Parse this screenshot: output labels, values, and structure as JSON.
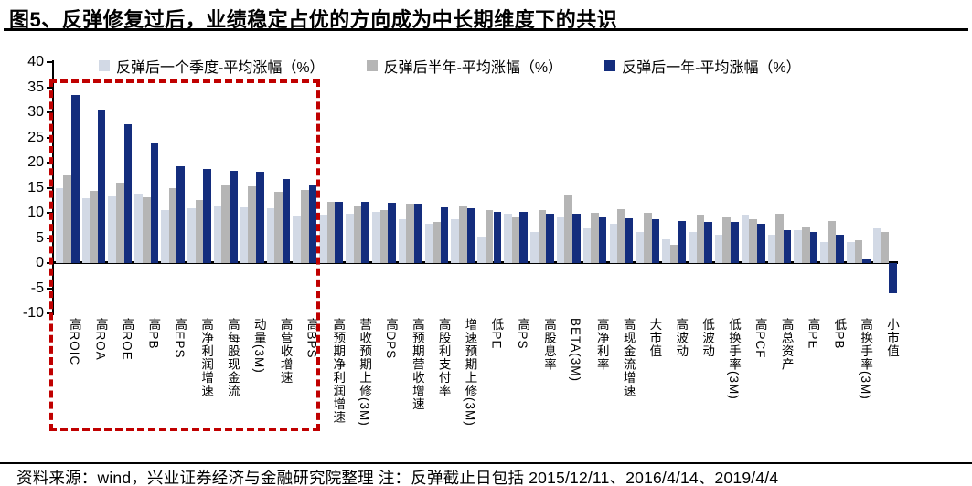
{
  "page": {
    "title": "图5、反弹修复过后，业绩稳定占优的方向成为中长期维度下的共识"
  },
  "footer": {
    "text": "资料来源：wind，兴业证券经济与金融研究院整理  注：反弹截止日包括 2015/12/11、2016/4/14、2019/4/4"
  },
  "colors": {
    "series_quarter": "#d2d9e5",
    "series_half_year": "#b5b5b5",
    "series_one_year": "#142d7d",
    "highlight_box": "#c00000",
    "axis": "#000000"
  },
  "chart_data": {
    "type": "bar",
    "title": "图5、反弹修复过后，业绩稳定占优的方向成为中长期维度下的共识",
    "xlabel": "",
    "ylabel": "",
    "ylim": [
      -10,
      40
    ],
    "yticks": [
      40,
      35,
      30,
      25,
      20,
      15,
      10,
      5,
      0,
      -5,
      -10
    ],
    "grid": false,
    "legend_position": "top",
    "categories": [
      "高ROIC",
      "高ROA",
      "高ROE",
      "高PB",
      "高EPS",
      "高净利润增速",
      "高每股现金流",
      "动量(3M)",
      "高营收增速",
      "高BPS",
      "高预期净利润增速",
      "营收预期上修(3M)",
      "高DPS",
      "高预期营收增速",
      "高股利支付率",
      "增速预期上修(3M)",
      "低PE",
      "高PS",
      "高股息率",
      "BETA(3M)",
      "高净利率",
      "高现金流增速",
      "大市值",
      "高波动",
      "低波动",
      "低换手率(3M)",
      "高PCF",
      "高总资产",
      "高PE",
      "低PB",
      "高换手率(3M)",
      "小市值"
    ],
    "series": [
      {
        "name": "反弹后一个季度-平均涨幅（%）",
        "color": "#d2d9e5",
        "values": [
          15.0,
          13.0,
          13.2,
          13.8,
          10.5,
          10.9,
          11.5,
          11.1,
          11.0,
          9.5,
          9.6,
          9.9,
          10.1,
          8.7,
          7.8,
          8.8,
          5.3,
          9.9,
          6.2,
          9.1,
          7.0,
          7.8,
          6.2,
          4.7,
          6.1,
          5.6,
          9.6,
          5.6,
          6.5,
          4.1,
          4.2,
          6.9
        ]
      },
      {
        "name": "反弹后半年-平均涨幅（%）",
        "color": "#b5b5b5",
        "values": [
          17.5,
          14.3,
          16.0,
          13.1,
          15.0,
          12.5,
          15.6,
          15.2,
          14.2,
          14.5,
          12.1,
          11.4,
          10.5,
          11.9,
          8.1,
          11.2,
          10.5,
          9.1,
          10.6,
          13.6,
          10.0,
          10.7,
          10.0,
          3.6,
          9.7,
          9.3,
          8.8,
          9.8,
          7.1,
          8.3,
          4.5,
          6.1
        ]
      },
      {
        "name": "反弹后一年-平均涨幅（%）",
        "color": "#142d7d",
        "values": [
          33.5,
          30.5,
          27.6,
          24.0,
          19.2,
          18.8,
          18.4,
          18.1,
          16.8,
          15.5,
          12.2,
          12.1,
          12.0,
          11.8,
          11.1,
          10.9,
          10.2,
          10.2,
          9.9,
          9.9,
          9.1,
          9.0,
          8.8,
          8.4,
          8.2,
          8.2,
          7.8,
          6.6,
          6.2,
          5.6,
          0.9,
          -6.0
        ]
      }
    ],
    "highlight_box": {
      "from_category_index": 0,
      "to_category_index": 9,
      "color": "#c00000",
      "style": "dashed"
    }
  }
}
